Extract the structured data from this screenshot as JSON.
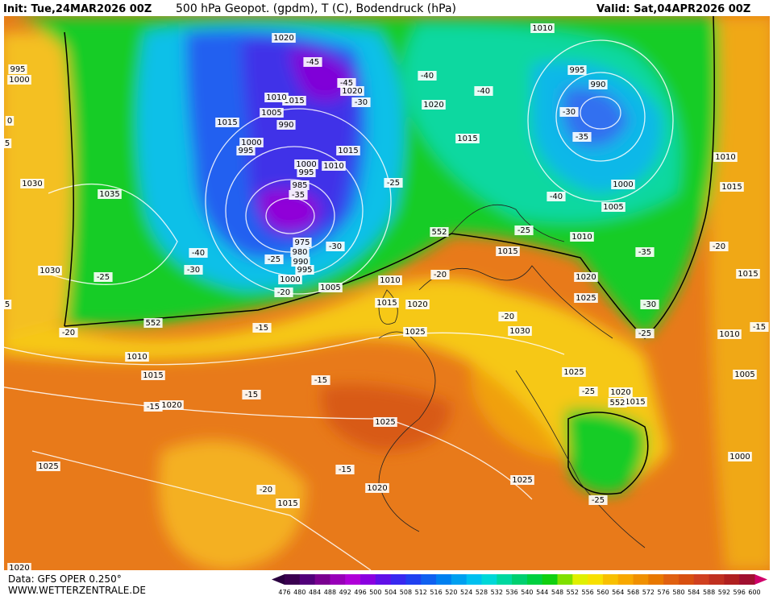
{
  "header": {
    "init": "Init: Tue,24MAR2026 00Z",
    "title": "500 hPa Geopot. (gpdm), T (C), Bodendruck (hPa)",
    "valid": "Valid: Sat,04APR2026 00Z"
  },
  "map": {
    "labels": [
      "1020",
      "-45",
      "-45",
      "1020",
      "-30",
      "1015",
      "1010",
      "1005",
      "990",
      "1015",
      "1000",
      "995",
      "1015",
      "1010",
      "1000",
      "995",
      "985",
      "-35",
      "975",
      "980",
      "990",
      "995",
      "1000",
      "-30",
      "-25",
      "1005",
      "-20",
      "-25",
      "1035",
      "1030",
      "1030",
      "-25",
      "-40",
      "-30",
      "995",
      "1000",
      "1020",
      "-40",
      "-40",
      "1015",
      "1010",
      "995",
      "990",
      "-30",
      "-35",
      "1000",
      "1005",
      "-40",
      "-25",
      "1010",
      "1015",
      "552",
      "1010",
      "-20",
      "1015",
      "1020",
      "1025",
      "1030",
      "-20",
      "1025",
      "1020",
      "-35",
      "-30",
      "1010",
      "1015",
      "-20",
      "1015",
      "-25",
      "1010",
      "-15",
      "1005",
      "552",
      "-20",
      "-15",
      "1010",
      "1015",
      "-15",
      "-15",
      "-15",
      "1020",
      "1025",
      "-25",
      "1020",
      "1015",
      "552",
      "1025",
      "1025",
      "-15",
      "1020",
      "1025",
      "-20",
      "1015",
      "1000",
      "-25",
      "1020",
      "0",
      "5",
      "5"
    ]
  },
  "footer": {
    "source": "Data: GFS OPER 0.250°",
    "site": "WWW.WETTERZENTRALE.DE"
  },
  "colorbar": {
    "ticks": [
      476,
      480,
      484,
      488,
      492,
      496,
      500,
      504,
      508,
      512,
      516,
      520,
      524,
      528,
      532,
      536,
      540,
      544,
      548,
      552,
      556,
      560,
      564,
      568,
      572,
      576,
      580,
      584,
      588,
      592,
      596,
      600
    ],
    "colors": [
      "#3a0050",
      "#52007a",
      "#7a0090",
      "#9800b8",
      "#b000d8",
      "#8a00e0",
      "#6010e8",
      "#3828f0",
      "#2040f0",
      "#1060f0",
      "#0080f0",
      "#00a0f0",
      "#00c0f0",
      "#00d8d8",
      "#00d8a0",
      "#00d070",
      "#00d040",
      "#10d010",
      "#80e000",
      "#e0f000",
      "#f8e000",
      "#f8c000",
      "#f8a800",
      "#f09000",
      "#e87800",
      "#e06010",
      "#d85010",
      "#d04020",
      "#c03020",
      "#b02020",
      "#a01030"
    ]
  }
}
